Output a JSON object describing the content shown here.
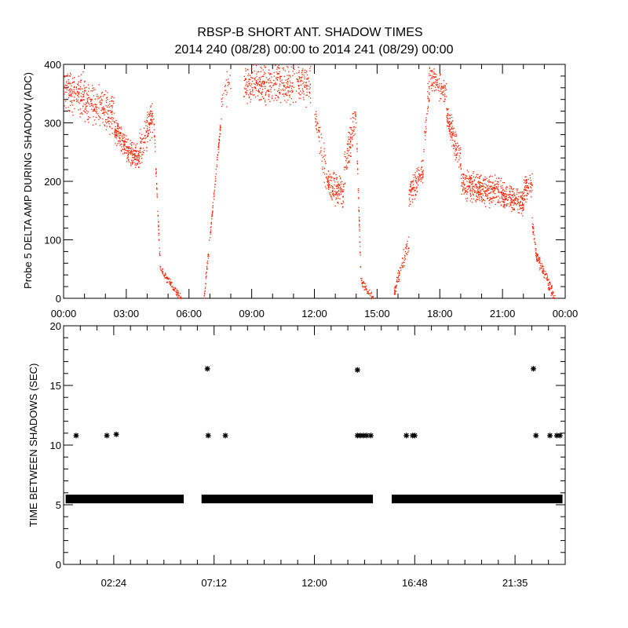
{
  "title": "RBSP-B SHORT ANT. SHADOW TIMES",
  "subtitle": "2014 240 (08/28) 00:00 to 2014 241 (08/29) 00:00",
  "colors": {
    "points": "#ff2200",
    "stars": "#000000",
    "axes": "#000000"
  },
  "chart_data": [
    {
      "type": "scatter",
      "ylabel": "Probe 5 DELTA AMP DURING SHADOW (ADC)",
      "xlabel": "",
      "xlim_hours": [
        0,
        24
      ],
      "ylim": [
        0,
        400
      ],
      "yticks": [
        "0",
        "100",
        "200",
        "300",
        "400"
      ],
      "ytick_values": [
        0,
        100,
        200,
        300,
        400
      ],
      "xticks": [
        "00:00",
        "03:00",
        "06:00",
        "09:00",
        "12:00",
        "15:00",
        "18:00",
        "21:00",
        "00:00"
      ],
      "xtick_hours": [
        0,
        3,
        6,
        9,
        12,
        15,
        18,
        21,
        24
      ],
      "series_envelope": {
        "note_fields": [
          "t_start_h",
          "t_end_h",
          "value_start",
          "value_end",
          "spread",
          "density"
        ],
        "segments": [
          [
            0.0,
            1.0,
            360,
            345,
            45,
            160
          ],
          [
            1.0,
            2.4,
            340,
            315,
            40,
            200
          ],
          [
            2.4,
            3.0,
            290,
            260,
            25,
            120
          ],
          [
            3.0,
            3.6,
            255,
            240,
            25,
            120
          ],
          [
            3.6,
            4.3,
            255,
            315,
            35,
            120
          ],
          [
            4.3,
            4.6,
            300,
            60,
            10,
            50
          ],
          [
            4.6,
            5.6,
            50,
            0,
            8,
            90
          ],
          [
            6.7,
            7.5,
            0,
            300,
            12,
            110
          ],
          [
            7.5,
            8.0,
            330,
            380,
            40,
            25
          ],
          [
            8.6,
            11.8,
            370,
            365,
            40,
            450
          ],
          [
            12.0,
            12.6,
            320,
            200,
            40,
            60
          ],
          [
            12.6,
            13.4,
            195,
            180,
            30,
            140
          ],
          [
            13.4,
            14.0,
            220,
            320,
            40,
            90
          ],
          [
            14.0,
            14.2,
            280,
            40,
            10,
            40
          ],
          [
            14.2,
            14.8,
            30,
            0,
            8,
            50
          ],
          [
            15.8,
            16.2,
            10,
            65,
            15,
            50
          ],
          [
            16.2,
            16.5,
            60,
            100,
            20,
            30
          ],
          [
            16.5,
            17.2,
            175,
            220,
            25,
            110
          ],
          [
            17.2,
            17.5,
            250,
            380,
            30,
            40
          ],
          [
            17.5,
            18.3,
            380,
            350,
            25,
            100
          ],
          [
            18.3,
            19.0,
            320,
            230,
            30,
            130
          ],
          [
            19.0,
            21.0,
            195,
            180,
            30,
            380
          ],
          [
            21.0,
            22.0,
            175,
            165,
            25,
            200
          ],
          [
            22.0,
            22.4,
            185,
            195,
            25,
            70
          ],
          [
            22.4,
            22.6,
            130,
            75,
            12,
            30
          ],
          [
            22.6,
            23.5,
            75,
            0,
            12,
            110
          ]
        ]
      }
    },
    {
      "type": "scatter",
      "ylabel": "TIME BETWEEN SHADOWS (SEC)",
      "xlabel": "",
      "xlim_hours": [
        0,
        24
      ],
      "ylim": [
        0,
        20
      ],
      "yticks": [
        "0",
        "5",
        "10",
        "15",
        "20"
      ],
      "ytick_values": [
        0,
        5,
        10,
        15,
        20
      ],
      "xticks": [
        "02:24",
        "07:12",
        "12:00",
        "16:48",
        "21:35"
      ],
      "xtick_hours": [
        2.4,
        7.2,
        12.0,
        16.8,
        21.6
      ],
      "band_value": 5.45,
      "band_ranges_hours": [
        [
          0.1,
          5.75
        ],
        [
          6.6,
          14.8
        ],
        [
          15.7,
          23.87
        ]
      ],
      "outliers": [
        {
          "h": 0.6,
          "v": 10.8
        },
        {
          "h": 2.07,
          "v": 10.8
        },
        {
          "h": 2.52,
          "v": 10.9
        },
        {
          "h": 6.88,
          "v": 16.4
        },
        {
          "h": 6.92,
          "v": 10.8
        },
        {
          "h": 7.74,
          "v": 10.8
        },
        {
          "h": 14.06,
          "v": 16.3
        },
        {
          "h": 14.06,
          "v": 10.8
        },
        {
          "h": 14.2,
          "v": 10.8
        },
        {
          "h": 14.35,
          "v": 10.8
        },
        {
          "h": 14.5,
          "v": 10.8
        },
        {
          "h": 14.7,
          "v": 10.8
        },
        {
          "h": 16.4,
          "v": 10.8
        },
        {
          "h": 16.7,
          "v": 10.8
        },
        {
          "h": 16.8,
          "v": 10.8
        },
        {
          "h": 22.48,
          "v": 16.4
        },
        {
          "h": 22.6,
          "v": 10.8
        },
        {
          "h": 23.27,
          "v": 10.8
        },
        {
          "h": 23.6,
          "v": 10.8
        },
        {
          "h": 23.75,
          "v": 10.8
        }
      ]
    }
  ]
}
